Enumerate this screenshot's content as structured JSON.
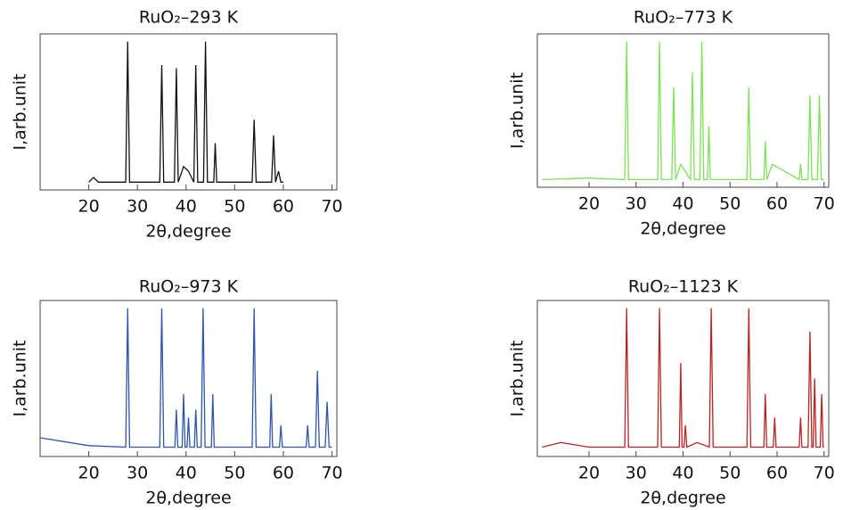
{
  "chart_data": [
    {
      "type": "line",
      "title": "RuO₂–293 K",
      "x_label": "2θ,degree",
      "y_label": "I,arb.unit",
      "color": "#111111",
      "xlim": [
        10,
        71
      ],
      "ylim": [
        0,
        100
      ],
      "xticks": [
        20,
        30,
        40,
        50,
        60,
        70
      ],
      "x": [
        20,
        21,
        22,
        27.6,
        28,
        28.4,
        34.6,
        35,
        35.4,
        37.6,
        38,
        38.4,
        39.5,
        40.5,
        41.6,
        42,
        42.4,
        43.6,
        44,
        44.4,
        45.7,
        46,
        46.3,
        53.6,
        54,
        54.4,
        57.6,
        58,
        58.4,
        59,
        59.5,
        60
      ],
      "values": [
        5,
        8,
        5,
        5,
        95,
        5,
        5,
        80,
        5,
        5,
        78,
        5,
        15,
        12,
        5,
        80,
        5,
        5,
        95,
        5,
        5,
        30,
        5,
        5,
        45,
        5,
        5,
        35,
        5,
        12,
        5,
        5
      ]
    },
    {
      "type": "line",
      "title": "RuO₂–773 K",
      "x_label": "2θ,degree",
      "y_label": "I,arb.unit",
      "color": "#7fe05a",
      "xlim": [
        9,
        71
      ],
      "ylim": [
        0,
        100
      ],
      "xticks": [
        20,
        30,
        40,
        50,
        60,
        70
      ],
      "x": [
        10,
        20,
        27.6,
        28,
        28.4,
        34.6,
        35,
        35.4,
        37.6,
        38,
        38.4,
        39.5,
        41.6,
        42,
        42.4,
        43.6,
        44,
        44.4,
        45.2,
        45.5,
        45.8,
        53.6,
        54,
        54.4,
        57.2,
        57.5,
        57.8,
        59,
        64.7,
        65,
        65.3,
        66.6,
        67,
        67.4,
        68.6,
        69,
        69.4,
        70
      ],
      "values": [
        5,
        6,
        5,
        95,
        5,
        5,
        95,
        5,
        5,
        65,
        5,
        15,
        5,
        75,
        5,
        5,
        95,
        5,
        5,
        40,
        5,
        5,
        65,
        5,
        5,
        30,
        5,
        15,
        5,
        15,
        5,
        5,
        60,
        5,
        5,
        60,
        5,
        5
      ]
    },
    {
      "type": "line",
      "title": "RuO₂–973 K",
      "x_label": "2θ,degree",
      "y_label": "I,arb.unit",
      "color": "#2e55a8",
      "xlim": [
        10,
        71
      ],
      "ylim": [
        0,
        100
      ],
      "xticks": [
        20,
        30,
        40,
        50,
        60,
        70
      ],
      "x": [
        10,
        20,
        27.6,
        28,
        28.4,
        34.6,
        35,
        35.4,
        37.7,
        38,
        38.3,
        39.2,
        39.5,
        39.8,
        40.2,
        40.5,
        40.8,
        41.7,
        42,
        42.3,
        43.1,
        43.5,
        43.9,
        45.2,
        45.5,
        45.8,
        53.6,
        54,
        54.4,
        57.2,
        57.5,
        57.8,
        59.2,
        59.5,
        59.8,
        64.7,
        65,
        65.3,
        66.6,
        67,
        67.4,
        68.6,
        69,
        69.4,
        70
      ],
      "values": [
        12,
        7,
        6,
        95,
        6,
        6,
        95,
        6,
        6,
        30,
        6,
        6,
        40,
        6,
        6,
        25,
        6,
        6,
        30,
        6,
        6,
        95,
        6,
        6,
        40,
        6,
        6,
        95,
        6,
        6,
        40,
        6,
        6,
        20,
        6,
        6,
        20,
        6,
        6,
        55,
        6,
        6,
        35,
        6,
        6
      ]
    },
    {
      "type": "line",
      "title": "RuO₂–1123 K",
      "x_label": "2θ,degree",
      "y_label": "I,arb.unit",
      "color": "#b52424",
      "xlim": [
        9,
        71
      ],
      "ylim": [
        0,
        100
      ],
      "xticks": [
        20,
        30,
        40,
        50,
        60,
        70
      ],
      "x": [
        10,
        14,
        20,
        27.6,
        28,
        28.4,
        34.6,
        35,
        35.4,
        39.2,
        39.5,
        39.8,
        40.2,
        40.5,
        40.8,
        43,
        45.6,
        46,
        46.4,
        53.6,
        54,
        54.4,
        57.2,
        57.5,
        57.8,
        59.2,
        59.5,
        59.8,
        64.7,
        65,
        65.3,
        66.6,
        67,
        67.4,
        67.7,
        68,
        68.3,
        69.2,
        69.5,
        69.8,
        70
      ],
      "values": [
        6,
        9,
        6,
        6,
        95,
        6,
        6,
        95,
        6,
        6,
        60,
        6,
        6,
        20,
        6,
        9,
        6,
        95,
        6,
        6,
        95,
        6,
        6,
        40,
        6,
        6,
        25,
        6,
        6,
        25,
        6,
        6,
        80,
        6,
        6,
        50,
        6,
        6,
        40,
        6,
        6
      ]
    }
  ]
}
